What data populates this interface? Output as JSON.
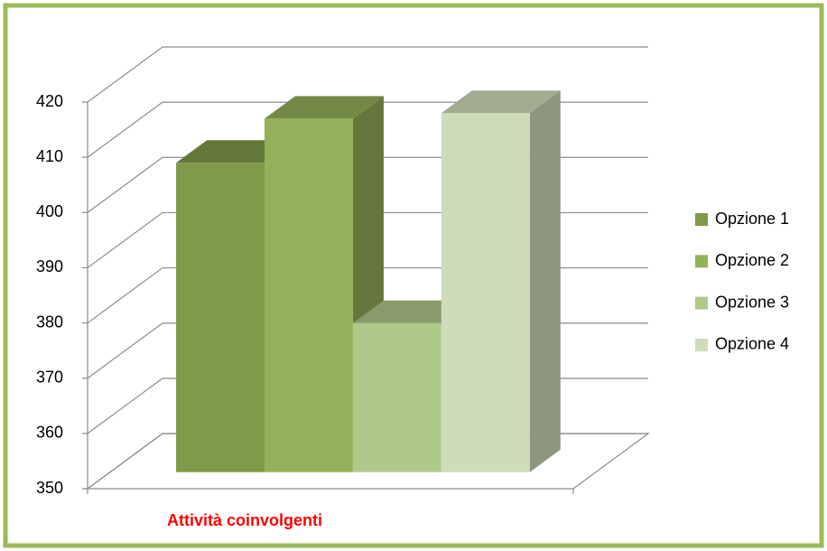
{
  "chart_data": {
    "type": "bar3d",
    "categories": [
      "Attività coinvolgenti"
    ],
    "series": [
      {
        "name": "Opzione 1",
        "color": "#7f9a48",
        "values": [
          406
        ]
      },
      {
        "name": "Opzione 2",
        "color": "#93b15a",
        "values": [
          414
        ]
      },
      {
        "name": "Opzione 3",
        "color": "#afc98a",
        "values": [
          377
        ]
      },
      {
        "name": "Opzione 4",
        "color": "#cfdcba",
        "values": [
          415
        ]
      }
    ],
    "ylim": [
      350,
      420
    ],
    "yticks": [
      350,
      360,
      370,
      380,
      390,
      400,
      410,
      420
    ],
    "grid": true,
    "legend": "right",
    "category_label_color": "#ff0000"
  }
}
